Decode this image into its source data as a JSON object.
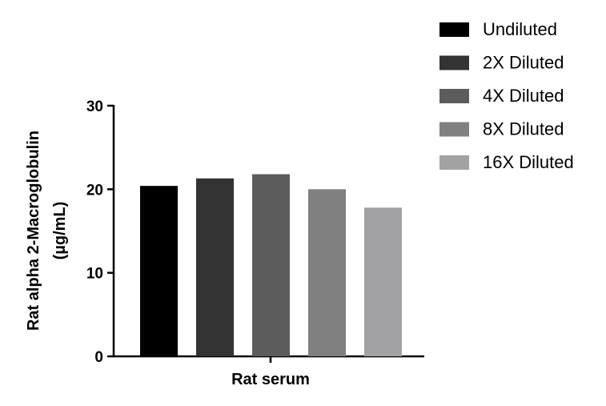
{
  "chart_data": {
    "type": "bar",
    "categories": [
      "Rat serum"
    ],
    "xlabel": "Rat serum",
    "ylabel_lines": [
      "Rat alpha 2-Macroglobulin",
      "(µg/mL)"
    ],
    "ylim": [
      0,
      30
    ],
    "yticks": [
      "0",
      "10",
      "20",
      "30"
    ],
    "grid": false,
    "legend_position": "top-right",
    "series": [
      {
        "name": "Undiluted",
        "values": [
          20.4
        ],
        "color": "#000000"
      },
      {
        "name": "2X Diluted",
        "values": [
          21.3
        ],
        "color": "#333333"
      },
      {
        "name": "4X Diluted",
        "values": [
          21.8
        ],
        "color": "#5c5c5c"
      },
      {
        "name": "8X Diluted",
        "values": [
          20.0
        ],
        "color": "#808080"
      },
      {
        "name": "16X Diluted",
        "values": [
          17.8
        ],
        "color": "#a2a2a5"
      }
    ]
  }
}
